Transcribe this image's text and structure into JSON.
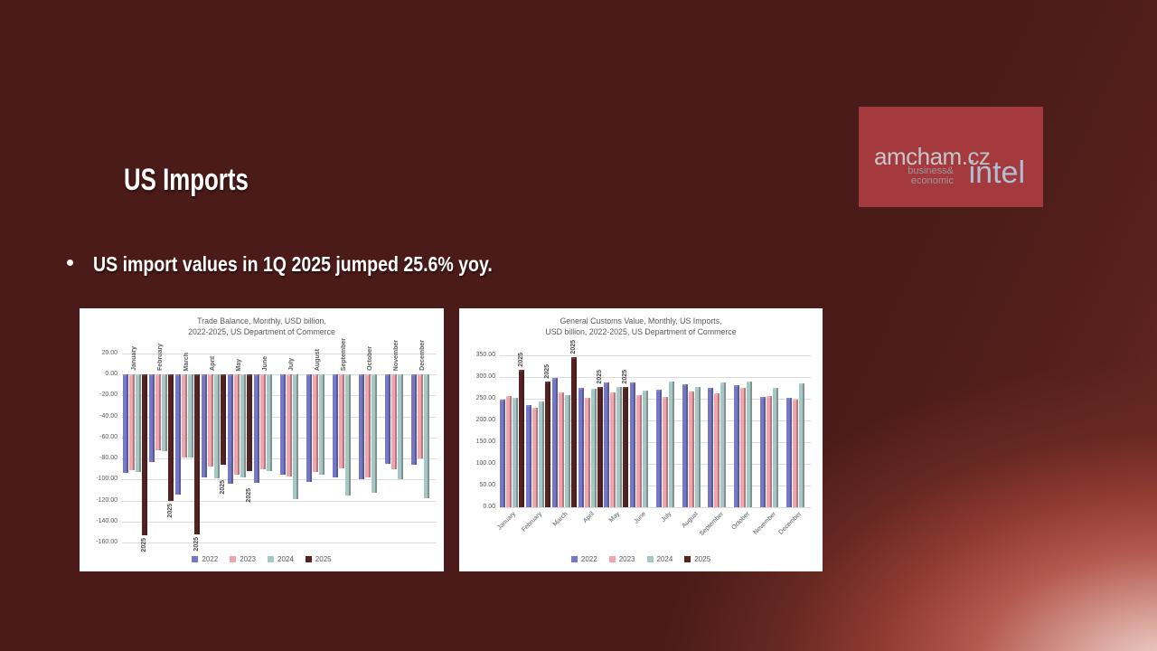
{
  "slide": {
    "title": "US Imports",
    "bullet": "US import values in 1Q 2025 jumped 25.6% yoy.",
    "background_color": "#4a1b18",
    "accent_gradient_color": "#b4594e",
    "text_color": "#ffffff"
  },
  "logo": {
    "line1": "amcham",
    "line1_suffix": ".cz",
    "line2_top": "business&",
    "line2_bottom": "economic",
    "line2_large": "intel",
    "bg_color": "#a43a3e",
    "gray_text_color": "#c6c7c9",
    "intel_color": "#b0c0d4"
  },
  "chart_data": [
    {
      "type": "bar",
      "title_lines": [
        "Trade Balance, Monthly, USD billion,",
        "2022-2025, US Department of Commerce"
      ],
      "categories": [
        "January",
        "February",
        "March",
        "April",
        "May",
        "June",
        "July",
        "August",
        "September",
        "October",
        "November",
        "December"
      ],
      "series": [
        {
          "name": "2022",
          "color": "#7577c9",
          "values": [
            -94,
            -83,
            -114,
            -98,
            -104,
            -103,
            -95,
            -102,
            -98,
            -100,
            -85,
            -86
          ]
        },
        {
          "name": "2023",
          "color": "#efa5ae",
          "values": [
            -91,
            -72,
            -79,
            -88,
            -95,
            -90,
            -97,
            -93,
            -89,
            -98,
            -90,
            -80
          ]
        },
        {
          "name": "2024",
          "color": "#a6c8c4",
          "values": [
            -93,
            -73,
            -79,
            -99,
            -98,
            -92,
            -119,
            -95,
            -115,
            -113,
            -100,
            -118
          ]
        },
        {
          "name": "2025",
          "color": "#552222",
          "values": [
            -153,
            -120,
            -152,
            -86,
            -92,
            null,
            null,
            null,
            null,
            null,
            null,
            null
          ],
          "show_labels": true
        }
      ],
      "xlabel": "",
      "ylabel": "",
      "ylim": [
        -160,
        20
      ],
      "ytick_step": 20,
      "yticks": [
        "20.00",
        "0.00",
        "-20.00",
        "-40.00",
        "-60.00",
        "-80.00",
        "-100.00",
        "-120.00",
        "-140.00",
        "-160.00"
      ],
      "grid": true,
      "legend": [
        "2022",
        "2023",
        "2024",
        "2025"
      ],
      "legend_position": "bottom",
      "category_label_style": "vertical-top",
      "bar_label_offsets": [
        0,
        0,
        0,
        14,
        16,
        0,
        0,
        0,
        0,
        0,
        0,
        0
      ]
    },
    {
      "type": "bar",
      "title_lines": [
        "General Customs Value, Monthly, US Imports,",
        "USD billion, 2022-2025, US Department of Commerce"
      ],
      "categories": [
        "January",
        "February",
        "March",
        "April",
        "May",
        "June",
        "July",
        "August",
        "September",
        "October",
        "November",
        "December"
      ],
      "series": [
        {
          "name": "2022",
          "color": "#7577c9",
          "values": [
            248,
            236,
            297,
            275,
            287,
            288,
            270,
            284,
            274,
            281,
            255,
            253
          ]
        },
        {
          "name": "2023",
          "color": "#efa5ae",
          "values": [
            257,
            230,
            264,
            253,
            265,
            258,
            255,
            266,
            262,
            276,
            256,
            248
          ]
        },
        {
          "name": "2024",
          "color": "#a6c8c4",
          "values": [
            253,
            244,
            259,
            273,
            278,
            268,
            290,
            277,
            287,
            290,
            274,
            286
          ]
        },
        {
          "name": "2025",
          "color": "#552222",
          "values": [
            317,
            290,
            346,
            278,
            278,
            null,
            null,
            null,
            null,
            null,
            null,
            null
          ],
          "show_labels": true
        }
      ],
      "xlabel": "",
      "ylabel": "",
      "ylim": [
        0,
        350
      ],
      "ytick_step": 50,
      "yticks": [
        "350.00",
        "300.00",
        "250.00",
        "200.00",
        "150.00",
        "100.00",
        "50.00",
        "0.00"
      ],
      "grid": true,
      "legend": [
        "2022",
        "2023",
        "2024",
        "2025"
      ],
      "legend_position": "bottom",
      "category_label_style": "angled-bottom",
      "bar_label_offsets": [
        0,
        0,
        0,
        0,
        0,
        0,
        0,
        0,
        0,
        0,
        0,
        0
      ]
    }
  ]
}
